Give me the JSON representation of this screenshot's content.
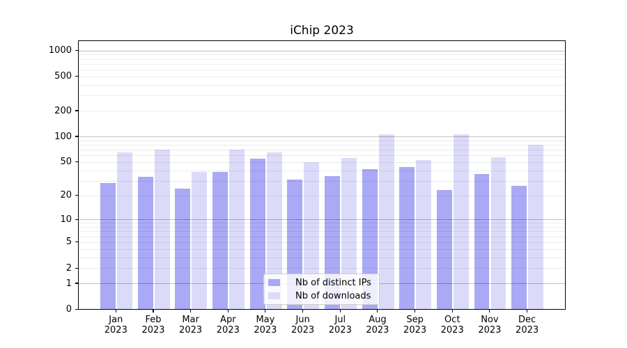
{
  "title": "iChip 2023",
  "legend": {
    "items": [
      {
        "label": "Nb of distinct IPs",
        "color": "#a9a9f5"
      },
      {
        "label": "Nb of downloads",
        "color": "#dbdbf9"
      }
    ]
  },
  "chart_data": {
    "type": "bar",
    "title": "iChip 2023",
    "categories": [
      "Jan",
      "Feb",
      "Mar",
      "Apr",
      "May",
      "Jun",
      "Jul",
      "Aug",
      "Sep",
      "Oct",
      "Nov",
      "Dec"
    ],
    "category_year": "2023",
    "series": [
      {
        "name": "Nb of distinct IPs",
        "color": "#a9a9f5",
        "values": [
          28,
          33,
          24,
          38,
          55,
          31,
          34,
          41,
          43,
          23,
          36,
          26
        ]
      },
      {
        "name": "Nb of downloads",
        "color": "#dbdbf9",
        "values": [
          64,
          69,
          38,
          69,
          64,
          50,
          56,
          106,
          52,
          105,
          57,
          79
        ]
      }
    ],
    "yscale": "log1p",
    "ylim": [
      0,
      1290
    ],
    "yticks": [
      0,
      1,
      2,
      5,
      10,
      20,
      50,
      100,
      200,
      500,
      1000
    ],
    "yticklabels": [
      "0",
      "1",
      "2",
      "5",
      "10",
      "20",
      "50",
      "100",
      "200",
      "500",
      "1000"
    ],
    "major_gridline_values": [
      1,
      10,
      100,
      1000
    ],
    "grid": true,
    "legend_position": "lower center inside axes",
    "xlabel": "",
    "ylabel": ""
  },
  "colors": {
    "bar_ips": "#a9a9f5",
    "bar_downloads": "#dbdbf9",
    "spine": "#000000",
    "background": "#ffffff"
  }
}
